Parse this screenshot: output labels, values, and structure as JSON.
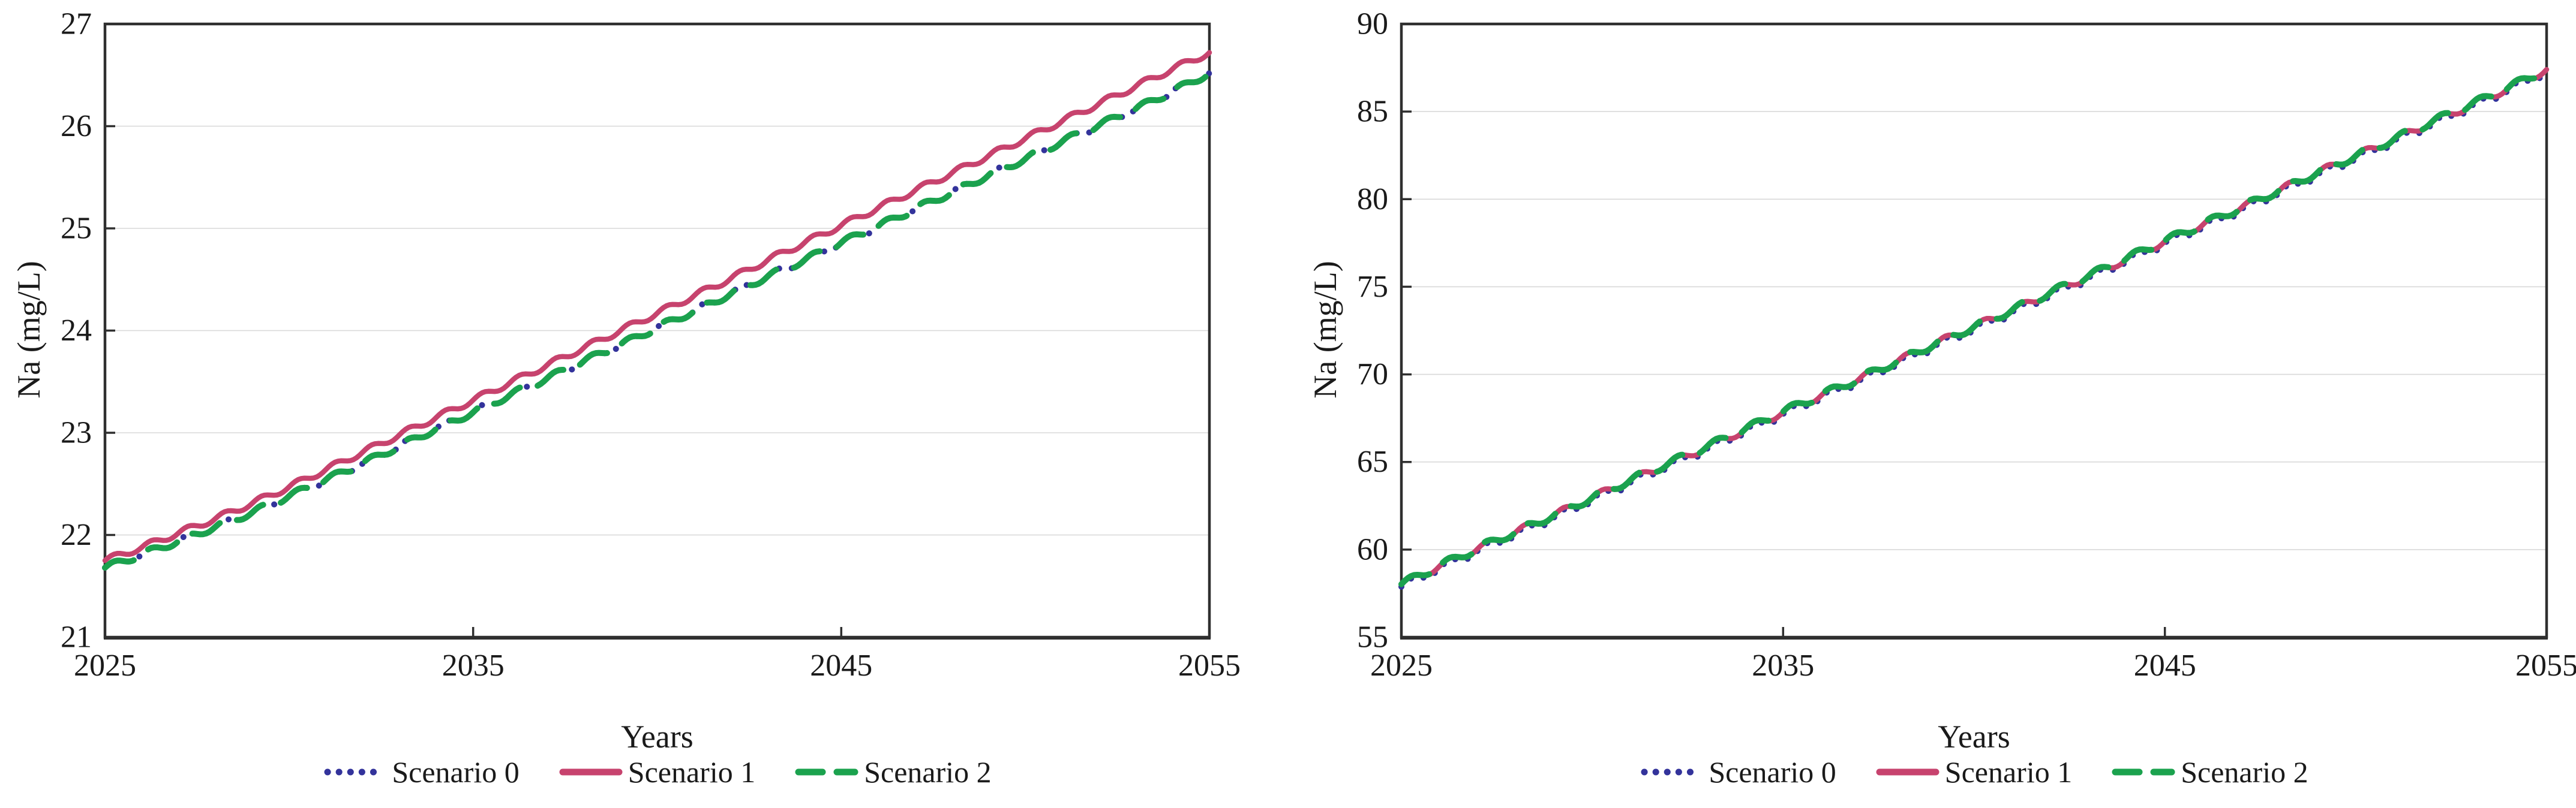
{
  "chart_data": [
    {
      "type": "line",
      "name": "sodium-concentration-low-range",
      "title": "",
      "grid": "horizontal-only",
      "legend_position": "bottom-center",
      "y_axis": {
        "label": "Na (mg/L)",
        "min": 21,
        "max": 27,
        "step": 1,
        "ticks": [
          21,
          22,
          23,
          24,
          25,
          26,
          27
        ]
      },
      "x_axis": {
        "label": "Years",
        "min": 2025,
        "max": 2055,
        "step": 1,
        "ticks": [
          2025,
          2035,
          2045,
          2055
        ]
      },
      "seasonal_amplitude": 0.03,
      "series": [
        {
          "name": "Scenario 0",
          "color": "#33339B",
          "line_style": "dotted",
          "values": [
            21.68,
            21.81,
            21.94,
            22.08,
            22.22,
            22.38,
            22.54,
            22.7,
            22.87,
            23.04,
            23.2,
            23.37,
            23.53,
            23.7,
            23.86,
            24.03,
            24.19,
            24.36,
            24.53,
            24.69,
            24.86,
            25.02,
            25.19,
            25.35,
            25.52,
            25.68,
            25.85,
            26.01,
            26.17,
            26.34,
            26.52
          ]
        },
        {
          "name": "Scenario 1",
          "color": "#C7436E",
          "line_style": "solid",
          "values": [
            21.75,
            21.88,
            22.02,
            22.16,
            22.31,
            22.47,
            22.64,
            22.81,
            22.98,
            23.15,
            23.32,
            23.49,
            23.66,
            23.83,
            24.0,
            24.17,
            24.34,
            24.51,
            24.69,
            24.86,
            25.03,
            25.2,
            25.37,
            25.54,
            25.71,
            25.88,
            26.05,
            26.22,
            26.39,
            26.56,
            26.72
          ]
        },
        {
          "name": "Scenario 2",
          "color": "#1BA24E",
          "line_style": "dashed",
          "values": [
            21.68,
            21.81,
            21.94,
            22.08,
            22.22,
            22.38,
            22.54,
            22.7,
            22.87,
            23.04,
            23.2,
            23.37,
            23.53,
            23.7,
            23.86,
            24.03,
            24.19,
            24.36,
            24.53,
            24.69,
            24.86,
            25.02,
            25.19,
            25.35,
            25.52,
            25.68,
            25.85,
            26.01,
            26.17,
            26.34,
            26.52
          ]
        }
      ]
    },
    {
      "type": "line",
      "name": "sodium-concentration-high-range",
      "title": "",
      "grid": "horizontal-only",
      "legend_position": "bottom-center",
      "y_axis": {
        "label": "Na (mg/L)",
        "min": 55,
        "max": 90,
        "step": 5,
        "ticks": [
          55,
          60,
          65,
          70,
          75,
          80,
          85,
          90
        ]
      },
      "x_axis": {
        "label": "Years",
        "min": 2025,
        "max": 2055,
        "step": 1,
        "ticks": [
          2025,
          2035,
          2045,
          2055
        ]
      },
      "seasonal_amplitude": 0.2,
      "series": [
        {
          "name": "Scenario 0",
          "color": "#33339B",
          "line_style": "dotted",
          "values": [
            57.88,
            58.93,
            59.93,
            60.88,
            61.83,
            62.83,
            63.83,
            64.78,
            65.73,
            66.73,
            67.73,
            68.68,
            69.63,
            70.63,
            71.63,
            72.58,
            73.53,
            74.53,
            75.48,
            76.48,
            77.48,
            78.43,
            79.38,
            80.38,
            81.38,
            82.33,
            83.28,
            84.28,
            85.23,
            86.23,
            87.28
          ]
        },
        {
          "name": "Scenario 1",
          "color": "#C7436E",
          "line_style": "solid",
          "values": [
            58.0,
            59.05,
            60.05,
            61.0,
            61.95,
            62.95,
            63.95,
            64.9,
            65.85,
            66.85,
            67.85,
            68.8,
            69.75,
            70.75,
            71.75,
            72.7,
            73.65,
            74.65,
            75.6,
            76.6,
            77.6,
            78.55,
            79.5,
            80.5,
            81.5,
            82.45,
            83.4,
            84.4,
            85.35,
            86.35,
            87.4
          ]
        },
        {
          "name": "Scenario 2",
          "color": "#1BA24E",
          "line_style": "dashed",
          "values": [
            58.02,
            59.07,
            60.07,
            61.02,
            61.97,
            62.97,
            63.97,
            64.92,
            65.87,
            66.87,
            67.87,
            68.82,
            69.77,
            70.77,
            71.77,
            72.72,
            73.67,
            74.67,
            75.62,
            76.62,
            77.62,
            78.57,
            79.52,
            80.52,
            81.52,
            82.47,
            83.42,
            84.42,
            85.37,
            86.37,
            87.42
          ]
        }
      ]
    }
  ],
  "style": {
    "grid_color": "#D8D8D8",
    "axis_color": "#2F2F2F",
    "text_color": "#1a1a1a"
  }
}
